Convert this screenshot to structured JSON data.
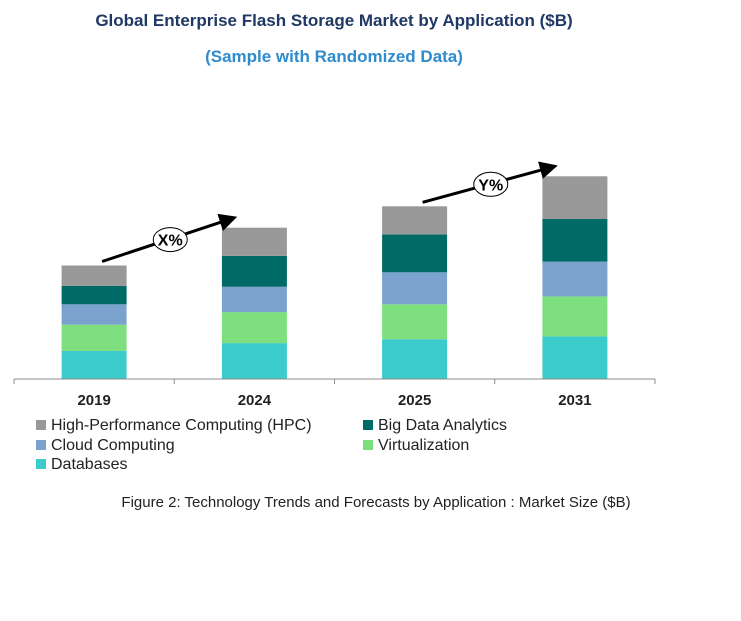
{
  "title": "Global Enterprise Flash Storage Market by Application ($B)",
  "subtitle": "(Sample with Randomized Data)",
  "caption": "Figure 2: Technology  Trends  and Forecasts by Application : Market Size ($B)",
  "chart_data": {
    "type": "bar",
    "stacked": true,
    "categories": [
      "2019",
      "2024",
      "2025",
      "2031"
    ],
    "series": [
      {
        "name": "Databases",
        "color": "#3ccbcb",
        "values": [
          29,
          37,
          41,
          44
        ]
      },
      {
        "name": "Virtualization",
        "color": "#7ddf7d",
        "values": [
          27,
          32,
          36,
          41
        ]
      },
      {
        "name": "Cloud Computing",
        "color": "#7aa2cc",
        "values": [
          21,
          26,
          33,
          36
        ]
      },
      {
        "name": "Big Data Analytics",
        "color": "#006b66",
        "values": [
          19,
          32,
          39,
          44
        ]
      },
      {
        "name": "High-Performance Computing (HPC)",
        "color": "#999999",
        "values": [
          21,
          29,
          29,
          44
        ]
      }
    ],
    "annotations": [
      {
        "label": "X%",
        "from": "2019",
        "to": "2024"
      },
      {
        "label": "Y%",
        "from": "2025",
        "to": "2031"
      }
    ],
    "legend": "bottom",
    "grid": false,
    "yaxis_visible": false
  }
}
